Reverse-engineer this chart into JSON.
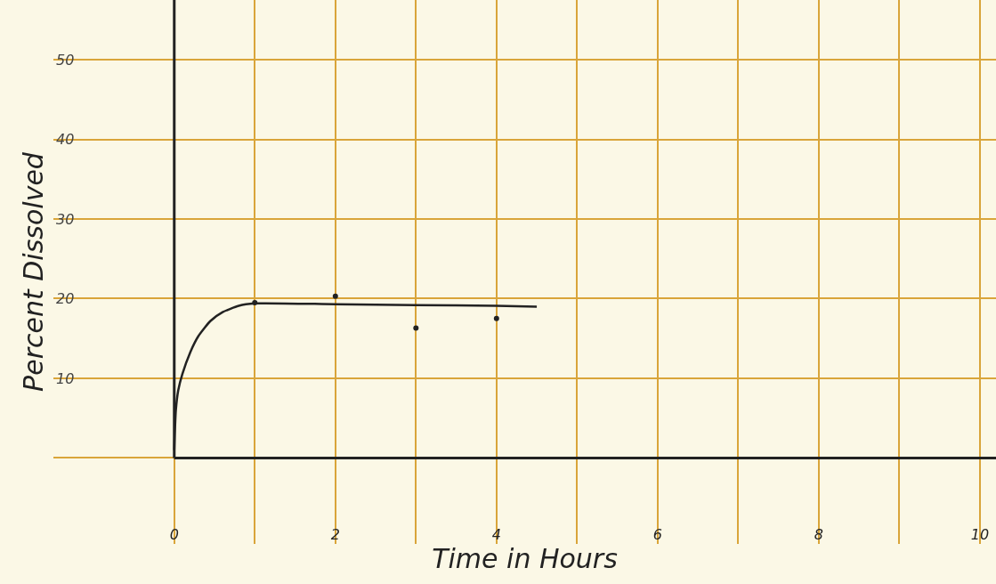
{
  "chart_data": {
    "type": "line",
    "xlabel": "Time in Hours",
    "ylabel": "Percent Dissolved",
    "xlim": [
      -1.5,
      10.2
    ],
    "ylim": [
      -10.8,
      57.5
    ],
    "xticks": [
      0,
      {
        "value": 1,
        "label": null
      },
      2,
      {
        "value": 3,
        "label": null
      },
      4,
      {
        "value": 5,
        "label": null
      },
      6,
      {
        "value": 7,
        "label": null
      },
      8,
      {
        "value": 9,
        "label": null
      },
      10
    ],
    "yticks": [
      {
        "value": 0,
        "label": null
      },
      10,
      20,
      30,
      40,
      50
    ],
    "grid": true,
    "series": [
      {
        "color": "#222222",
        "marker": "none",
        "x": [
          0,
          0.02,
          0.05,
          0.1,
          0.2,
          0.3,
          0.45,
          0.6,
          0.8,
          1.0,
          2,
          3,
          4,
          4.5
        ],
        "values": [
          1,
          6,
          8.5,
          10.5,
          13.3,
          15.3,
          17.2,
          18.3,
          19.1,
          19.4,
          19.3,
          19.2,
          19.1,
          19.0
        ]
      },
      {
        "type": "scatter",
        "color": "#222222",
        "marker": "circle",
        "x": [
          1,
          2,
          3,
          4
        ],
        "values": [
          19.5,
          20.3,
          16.3,
          17.5
        ]
      }
    ]
  }
}
